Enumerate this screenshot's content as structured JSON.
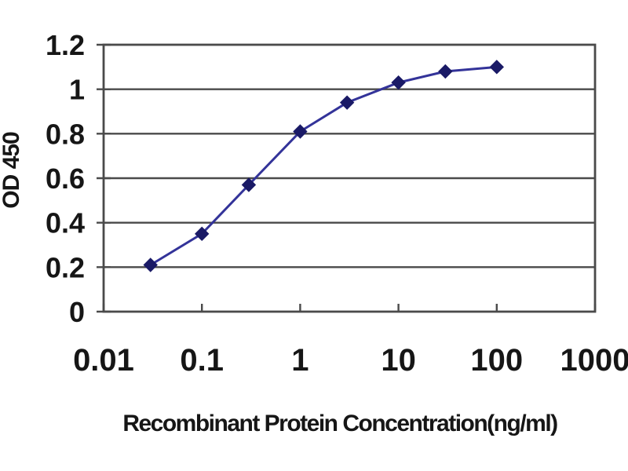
{
  "chart_data": {
    "type": "line",
    "x": [
      0.03,
      0.1,
      0.3,
      1,
      3,
      10,
      30,
      100
    ],
    "y": [
      0.21,
      0.35,
      0.57,
      0.81,
      0.94,
      1.03,
      1.08,
      1.1
    ],
    "xlabel": "Recombinant Protein Concentration(ng/ml)",
    "ylabel": "OD 450",
    "xscale": "log",
    "xlim": [
      0.01,
      1000
    ],
    "ylim": [
      0,
      1.2
    ],
    "xticks": [
      0.01,
      0.1,
      1,
      10,
      100,
      1000
    ],
    "xtick_labels": [
      "0.01",
      "0.1",
      "1",
      "10",
      "100",
      "1000"
    ],
    "yticks": [
      0,
      0.2,
      0.4,
      0.6,
      0.8,
      1,
      1.2
    ],
    "ytick_labels": [
      "0",
      "0.2",
      "0.4",
      "0.6",
      "0.8",
      "1",
      "1.2"
    ],
    "grid": "horizontal",
    "legend_position": "none",
    "marker_shape": "diamond",
    "colors": {
      "line": "#333399",
      "marker": "#1a1a66",
      "grid": "#4a4a4a",
      "axis": "#4a4a4a",
      "text": "#161616",
      "background": "#ffffff"
    }
  }
}
